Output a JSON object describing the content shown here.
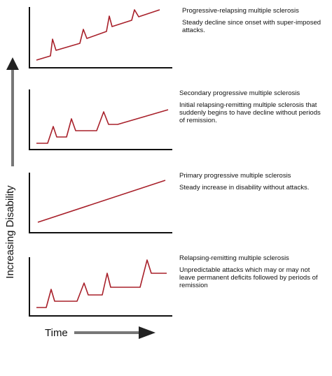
{
  "y_axis_label": "Increasing Disability",
  "x_axis_label": "Time",
  "colors": {
    "curve": "#a8202a",
    "axis": "#111111",
    "arrow_gray": "#777777",
    "arrow_dark": "#222222"
  },
  "panels": [
    {
      "id": "progressive-relapsing",
      "title": "Progressive-relapsing multiple sclerosis",
      "description": "Steady decline since onset with super-imposed attacks."
    },
    {
      "id": "secondary-progressive",
      "title": "Secondary progressive multiple sclerosis",
      "description": "Initial relapsing-remitting multiple sclerosis that suddenly begins to have decline without periods of remission."
    },
    {
      "id": "primary-progressive",
      "title": "Primary progressive multiple sclerosis",
      "description": "Steady increase in disability without attacks."
    },
    {
      "id": "relapsing-remitting",
      "title": "Relapsing-remitting multiple sclerosis",
      "description": "Unpredictable attacks which may or may not leave permanent deficits followed by periods of remission"
    }
  ]
}
